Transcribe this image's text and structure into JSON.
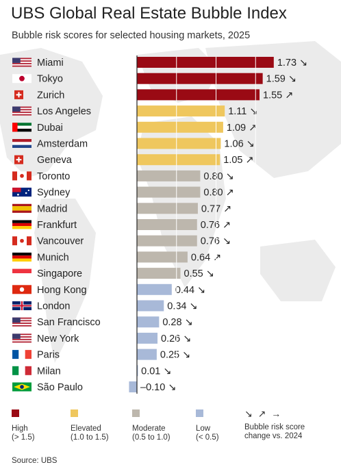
{
  "title": "UBS Global Real Estate Bubble Index",
  "subtitle": "Bubble risk scores for selected housing markets, 2025",
  "source": "Source: UBS",
  "colors": {
    "high": "#9a0a14",
    "elevated": "#efc75e",
    "moderate": "#bdb7ad",
    "low": "#a8b9d8",
    "axis": "#222222",
    "map": "#ebebeb"
  },
  "legend": [
    {
      "key": "high",
      "label": "High",
      "range": "(> 1.5)"
    },
    {
      "key": "elevated",
      "label": "Elevated",
      "range": "(1.0 to 1.5)"
    },
    {
      "key": "moderate",
      "label": "Moderate",
      "range": "(0.5 to 1.0)"
    },
    {
      "key": "low",
      "label": "Low",
      "range": "(< 0.5)"
    }
  ],
  "legend_change": {
    "symbols": "↘ ↗ →",
    "label": "Bubble risk score",
    "label2": "change vs. 2024"
  },
  "chart_data": {
    "type": "bar",
    "orientation": "horizontal",
    "title": "UBS Global Real Estate Bubble Index",
    "subtitle": "Bubble risk scores for selected housing markets, 2025",
    "categories": [
      "Miami",
      "Tokyo",
      "Zurich",
      "Los Angeles",
      "Dubai",
      "Amsterdam",
      "Geneva",
      "Toronto",
      "Sydney",
      "Madrid",
      "Frankfurt",
      "Vancouver",
      "Munich",
      "Singapore",
      "Hong Kong",
      "London",
      "San Francisco",
      "New York",
      "Paris",
      "Milan",
      "São Paulo"
    ],
    "values": [
      1.73,
      1.59,
      1.55,
      1.11,
      1.09,
      1.06,
      1.05,
      0.8,
      0.8,
      0.77,
      0.76,
      0.76,
      0.64,
      0.55,
      0.44,
      0.34,
      0.28,
      0.26,
      0.25,
      0.01,
      -0.1
    ],
    "value_labels": [
      "1.73",
      "1.59",
      "1.55",
      "1.11",
      "1.09",
      "1.06",
      "1.05",
      "0.80",
      "0.80",
      "0.77",
      "0.76",
      "0.76",
      "0.64",
      "0.55",
      "0.44",
      "0.34",
      "0.28",
      "0.26",
      "0.25",
      "0.01",
      "–0.10"
    ],
    "risk": [
      "high",
      "high",
      "high",
      "elevated",
      "elevated",
      "elevated",
      "elevated",
      "moderate",
      "moderate",
      "moderate",
      "moderate",
      "moderate",
      "moderate",
      "moderate",
      "low",
      "low",
      "low",
      "low",
      "low",
      "low",
      "low"
    ],
    "change": [
      "↘",
      "↘",
      "↗",
      "↘",
      "↗",
      "↘",
      "↗",
      "↘",
      "↗",
      "↗",
      "↗",
      "↘",
      "↗",
      "↘",
      "↘",
      "↘",
      "↘",
      "↘",
      "↘",
      "↘",
      "↘"
    ],
    "flags": [
      "us",
      "jp",
      "ch",
      "us",
      "ae",
      "nl",
      "ch",
      "ca",
      "au",
      "es",
      "de",
      "ca",
      "de",
      "sg",
      "hk",
      "gb",
      "us",
      "us",
      "fr",
      "it",
      "br"
    ],
    "xlim": [
      -0.15,
      1.85
    ],
    "grid": true
  }
}
